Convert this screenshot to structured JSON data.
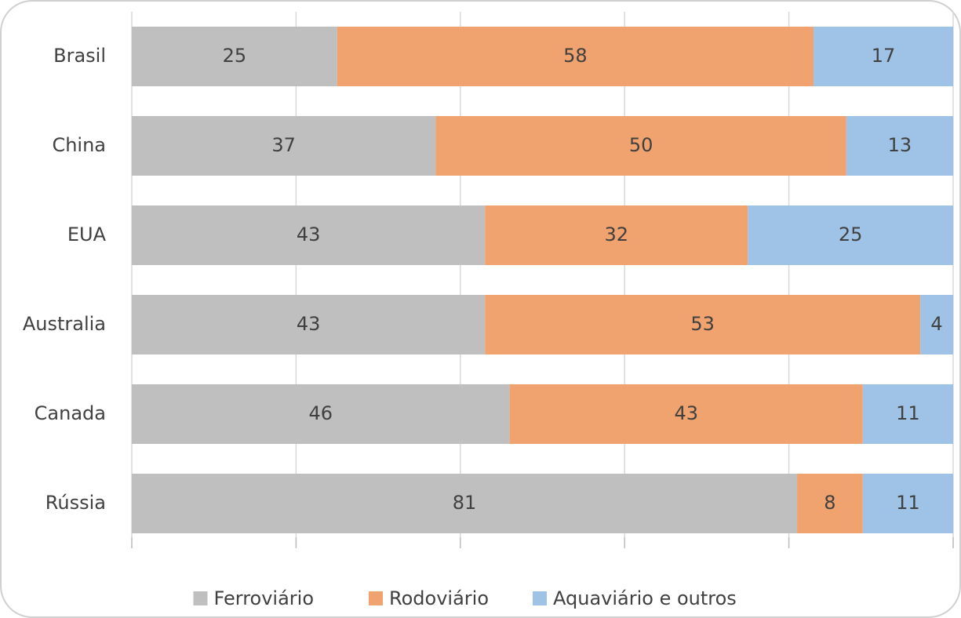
{
  "chart_data": {
    "type": "stacked_bar_horizontal",
    "categories": [
      "Brasil",
      "China",
      "EUA",
      "Australia",
      "Canada",
      "Rússia"
    ],
    "series": [
      {
        "name": "Ferroviário",
        "color": "#bfbfbf",
        "values": [
          25,
          37,
          43,
          43,
          46,
          81
        ]
      },
      {
        "name": "Rodoviário",
        "color": "#f0a36e",
        "values": [
          58,
          50,
          32,
          53,
          43,
          8
        ]
      },
      {
        "name": "Aquaviário e outros",
        "color": "#9fc3e6",
        "values": [
          17,
          13,
          25,
          4,
          11,
          11
        ]
      }
    ],
    "xlim": [
      0,
      100
    ],
    "xticks": [
      0,
      20,
      40,
      60,
      80,
      100
    ],
    "grid": true,
    "legend": "bottom"
  }
}
